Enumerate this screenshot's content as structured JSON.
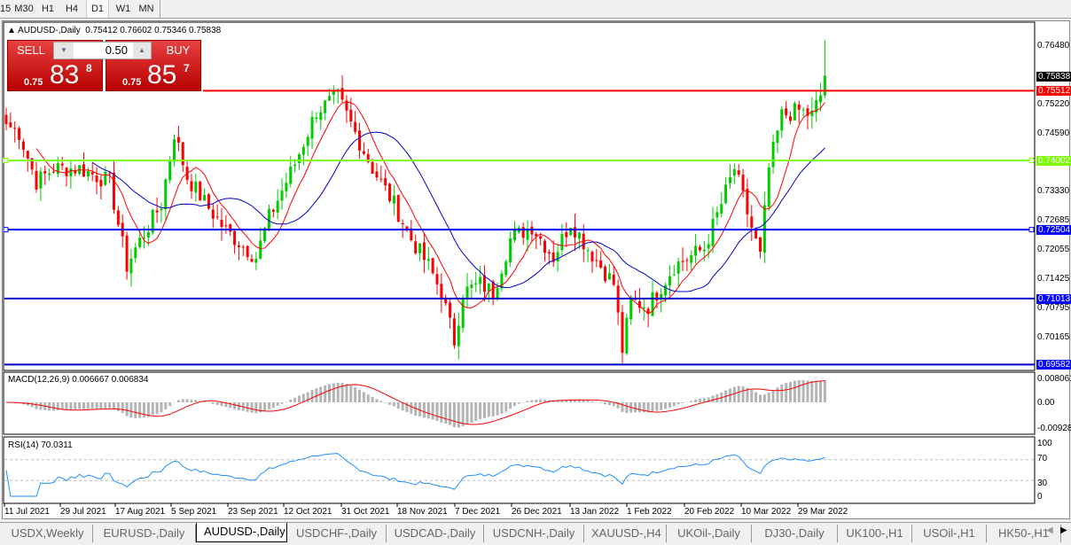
{
  "timeframes": [
    "15",
    "M30",
    "H1",
    "H4",
    "D1",
    "W1",
    "MN"
  ],
  "selected_timeframe": "D1",
  "chart": {
    "symbol_line": "AUDUSD-,Daily",
    "ohlc": "0.75412 0.76602 0.75346 0.75838",
    "open": 0.75412,
    "high": 0.76602,
    "low": 0.75346,
    "close": 0.75838
  },
  "trade_panel": {
    "sell_label": "SELL",
    "buy_label": "BUY",
    "volume": "0.50",
    "sell_prefix": "0.75",
    "sell_big": "83",
    "sell_pip": "8",
    "buy_prefix": "0.75",
    "buy_big": "85",
    "buy_pip": "7"
  },
  "price_axis": [
    "0.76480",
    "0.75220",
    "0.74590",
    "0.73330",
    "0.72685",
    "0.72055",
    "0.71425",
    "0.70795",
    "0.70165"
  ],
  "price_tags": {
    "current": "0.75838",
    "red_line": "0.75512",
    "green_line": "0.74002",
    "blue_line_1": "0.72504",
    "blue_line_2": "0.71013",
    "blue_line_3": "0.69582"
  },
  "colors": {
    "bull": "#00cc00",
    "bear": "#ff0000",
    "ma_fast": "#ff0000",
    "ma_slow": "#0000cc",
    "green_line": "#7cfc00",
    "blue_line": "#0000ff",
    "macd_hist": "#b4b4b4",
    "rsi": "#1e90ff"
  },
  "macd": {
    "label": "MACD(12,26,9) 0.006667 0.006834",
    "axis": [
      "0.008061",
      "0.00",
      "-0.009280"
    ]
  },
  "rsi": {
    "label": "RSI(14) 70.0311",
    "axis": [
      "100",
      "70",
      "30",
      "0"
    ]
  },
  "dates": [
    "11 Jul 2021",
    "29 Jul 2021",
    "17 Aug 2021",
    "5 Sep 2021",
    "23 Sep 2021",
    "12 Oct 2021",
    "31 Oct 2021",
    "18 Nov 2021",
    "7 Dec 2021",
    "26 Dec 2021",
    "13 Jan 2022",
    "1 Feb 2022",
    "20 Feb 2022",
    "10 Mar 2022",
    "29 Mar 2022"
  ],
  "tabs": [
    "USDX,Weekly",
    "EURUSD-,Daily",
    "AUDUSD-,Daily",
    "USDCHF-,Daily",
    "USDCAD-,Daily",
    "USDCNH-,Daily",
    "XAUUSD-,H4",
    "UKOil-,Daily",
    "DJ30-,Daily",
    "UK100-,H1",
    "USOil-,H1",
    "HK50-,H1"
  ],
  "active_tab": "AUDUSD-,Daily",
  "chart_data": {
    "type": "candlestick",
    "note_series": "approximate daily closes by trading-day number",
    "closes": [
      [
        0,
        0.7479
      ],
      [
        3,
        0.746
      ],
      [
        7,
        0.7354
      ],
      [
        11,
        0.7383
      ],
      [
        17,
        0.7383
      ],
      [
        24,
        0.7354
      ],
      [
        28,
        0.7172
      ],
      [
        30,
        0.721
      ],
      [
        33,
        0.7258
      ],
      [
        36,
        0.7306
      ],
      [
        39,
        0.746
      ],
      [
        42,
        0.7364
      ],
      [
        47,
        0.7297
      ],
      [
        51,
        0.7248
      ],
      [
        58,
        0.7191
      ],
      [
        61,
        0.7277
      ],
      [
        67,
        0.7393
      ],
      [
        72,
        0.7508
      ],
      [
        77,
        0.7537
      ],
      [
        81,
        0.746
      ],
      [
        85,
        0.7383
      ],
      [
        90,
        0.7306
      ],
      [
        94,
        0.723
      ],
      [
        98,
        0.7172
      ],
      [
        101,
        0.7114
      ],
      [
        104,
        0.7009
      ],
      [
        106,
        0.7114
      ],
      [
        110,
        0.7133
      ],
      [
        113,
        0.7114
      ],
      [
        117,
        0.723
      ],
      [
        122,
        0.7258
      ],
      [
        127,
        0.7191
      ],
      [
        131,
        0.7268
      ],
      [
        135,
        0.721
      ],
      [
        141,
        0.7133
      ],
      [
        143,
        0.699
      ],
      [
        145,
        0.7095
      ],
      [
        149,
        0.7085
      ],
      [
        155,
        0.7172
      ],
      [
        162,
        0.721
      ],
      [
        166,
        0.7306
      ],
      [
        169,
        0.7383
      ],
      [
        172,
        0.7287
      ],
      [
        175,
        0.7191
      ],
      [
        177,
        0.7383
      ],
      [
        180,
        0.7498
      ],
      [
        184,
        0.7508
      ],
      [
        187,
        0.7498
      ],
      [
        189,
        0.75412
      ],
      [
        190,
        0.75838
      ]
    ]
  }
}
